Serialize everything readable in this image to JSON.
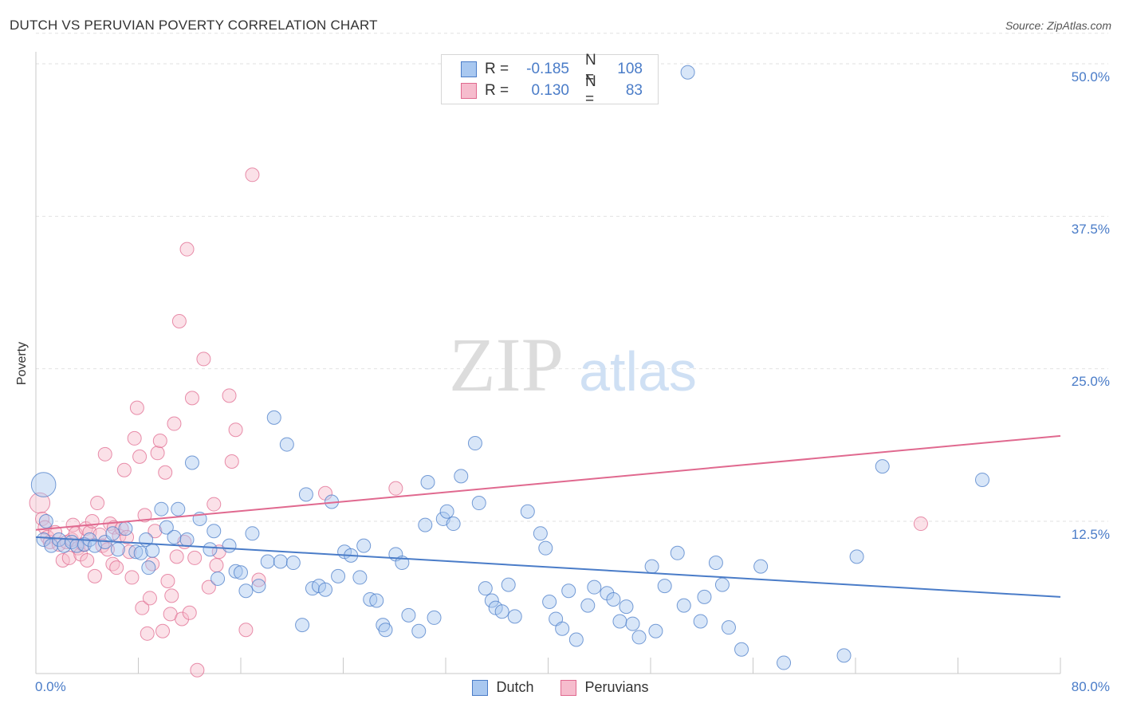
{
  "title": "DUTCH VS PERUVIAN POVERTY CORRELATION CHART",
  "source": "Source: ZipAtlas.com",
  "watermark": {
    "zip": "ZIP",
    "atlas": "atlas"
  },
  "legend": {
    "r_label": "R =",
    "n_label": "N =",
    "dutch": {
      "r": "-0.185",
      "n": "108"
    },
    "peruvians": {
      "r": "0.130",
      "n": "83"
    }
  },
  "colors": {
    "dutch": "#4a7cc8",
    "dutch_fill": "#a9c8f0",
    "peruvians": "#e0698f",
    "peruvians_fill": "#f6bccd",
    "axis_text": "#4a7cc8"
  },
  "chart_data": {
    "type": "scatter",
    "title": "DUTCH VS PERUVIAN POVERTY CORRELATION CHART",
    "xlabel": "",
    "ylabel": "Poverty",
    "xlim": [
      0,
      80
    ],
    "ylim": [
      0,
      52
    ],
    "x_tick_labels": [
      "0.0%",
      "80.0%"
    ],
    "y_ticks": [
      12.5,
      25.0,
      37.5,
      50.0
    ],
    "y_tick_labels": [
      "12.5%",
      "25.0%",
      "37.5%",
      "50.0%"
    ],
    "grid": true,
    "legend": [
      "Dutch",
      "Peruvians"
    ],
    "series": [
      {
        "name": "Dutch",
        "trend": {
          "x": [
            0,
            80
          ],
          "y": [
            11.2,
            6.3
          ]
        },
        "points": [
          [
            0.6,
            15.5,
            1.8
          ],
          [
            0.8,
            12.5,
            1
          ],
          [
            0.6,
            11,
            1
          ],
          [
            1.2,
            10.5,
            1
          ],
          [
            1.8,
            11,
            1
          ],
          [
            2.2,
            10.5,
            1
          ],
          [
            2.8,
            10.8,
            1
          ],
          [
            3.2,
            10.5,
            1
          ],
          [
            3.8,
            10.6,
            1
          ],
          [
            4.2,
            11.0,
            1
          ],
          [
            4.6,
            10.5,
            1
          ],
          [
            5.4,
            10.8,
            1
          ],
          [
            6,
            11.5,
            1
          ],
          [
            6.4,
            10.2,
            1
          ],
          [
            7,
            11.9,
            1
          ],
          [
            7.8,
            10.0,
            1
          ],
          [
            8.2,
            9.9,
            1
          ],
          [
            8.6,
            11.0,
            1
          ],
          [
            8.8,
            8.7,
            1
          ],
          [
            9.1,
            10.1,
            1
          ],
          [
            9.8,
            13.5,
            1
          ],
          [
            10.2,
            12.0,
            1
          ],
          [
            10.8,
            11.2,
            1
          ],
          [
            11.1,
            13.5,
            1
          ],
          [
            11.8,
            11.0,
            1
          ],
          [
            12.2,
            17.3,
            1
          ],
          [
            12.8,
            12.7,
            1
          ],
          [
            13.6,
            10.2,
            1
          ],
          [
            13.9,
            11.7,
            1
          ],
          [
            14.2,
            7.8,
            1
          ],
          [
            15.1,
            10.5,
            1
          ],
          [
            15.6,
            8.4,
            1
          ],
          [
            16.0,
            8.3,
            1
          ],
          [
            16.4,
            6.8,
            1
          ],
          [
            16.9,
            11.5,
            1
          ],
          [
            17.4,
            7.2,
            1
          ],
          [
            18.1,
            9.2,
            1
          ],
          [
            18.6,
            21.0,
            1
          ],
          [
            19.1,
            9.2,
            1
          ],
          [
            19.6,
            18.8,
            1
          ],
          [
            20.1,
            9.1,
            1
          ],
          [
            20.8,
            4.0,
            1
          ],
          [
            21.1,
            14.7,
            1
          ],
          [
            21.6,
            7.0,
            1
          ],
          [
            22.1,
            7.2,
            1
          ],
          [
            22.6,
            6.9,
            1
          ],
          [
            23.1,
            14.1,
            1
          ],
          [
            23.6,
            8.0,
            1
          ],
          [
            24.1,
            10.0,
            1
          ],
          [
            24.6,
            9.7,
            1
          ],
          [
            25.3,
            7.9,
            1
          ],
          [
            25.6,
            10.5,
            1
          ],
          [
            26.1,
            6.1,
            1
          ],
          [
            26.6,
            6.0,
            1
          ],
          [
            27.1,
            4.0,
            1
          ],
          [
            27.3,
            3.6,
            1
          ],
          [
            28.1,
            9.8,
            1
          ],
          [
            28.6,
            9.1,
            1
          ],
          [
            29.1,
            4.8,
            1
          ],
          [
            29.9,
            3.5,
            1
          ],
          [
            30.4,
            12.2,
            1
          ],
          [
            30.6,
            15.7,
            1
          ],
          [
            31.1,
            4.6,
            1
          ],
          [
            31.8,
            12.7,
            1
          ],
          [
            32.1,
            13.3,
            1
          ],
          [
            32.6,
            12.3,
            1
          ],
          [
            33.2,
            16.2,
            1
          ],
          [
            34.3,
            18.9,
            1
          ],
          [
            34.6,
            14.0,
            1
          ],
          [
            35.1,
            7.0,
            1
          ],
          [
            35.6,
            6.0,
            1
          ],
          [
            35.9,
            5.4,
            1
          ],
          [
            36.4,
            5.1,
            1
          ],
          [
            36.9,
            7.3,
            1
          ],
          [
            37.4,
            4.7,
            1
          ],
          [
            38.4,
            13.3,
            1
          ],
          [
            39.4,
            11.5,
            1
          ],
          [
            39.8,
            10.3,
            1
          ],
          [
            40.1,
            5.9,
            1
          ],
          [
            40.6,
            4.5,
            1
          ],
          [
            41.1,
            3.7,
            1
          ],
          [
            41.6,
            6.8,
            1
          ],
          [
            42.2,
            2.8,
            1
          ],
          [
            43.1,
            5.6,
            1
          ],
          [
            43.6,
            7.1,
            1
          ],
          [
            44.6,
            6.6,
            1
          ],
          [
            45.1,
            6.1,
            1
          ],
          [
            45.6,
            4.3,
            1
          ],
          [
            46.1,
            5.5,
            1
          ],
          [
            46.6,
            4.1,
            1
          ],
          [
            47.1,
            3.0,
            1
          ],
          [
            48.1,
            8.8,
            1
          ],
          [
            48.4,
            3.5,
            1
          ],
          [
            49.1,
            7.2,
            1
          ],
          [
            50.1,
            9.9,
            1
          ],
          [
            50.6,
            5.6,
            1
          ],
          [
            50.9,
            49.3,
            1
          ],
          [
            51.9,
            4.3,
            1
          ],
          [
            52.2,
            6.3,
            1
          ],
          [
            53.1,
            9.1,
            1
          ],
          [
            53.6,
            7.3,
            1
          ],
          [
            54.1,
            3.8,
            1
          ],
          [
            55.1,
            2.0,
            1
          ],
          [
            56.6,
            8.8,
            1
          ],
          [
            58.4,
            0.9,
            1
          ],
          [
            63.1,
            1.5,
            1
          ],
          [
            64.1,
            9.6,
            1
          ],
          [
            66.1,
            17.0,
            1
          ],
          [
            73.9,
            15.9,
            1
          ]
        ]
      },
      {
        "name": "Peruvians",
        "trend": {
          "x": [
            0,
            80
          ],
          "y": [
            11.8,
            19.5
          ]
        },
        "points": [
          [
            0.3,
            14.0,
            1.5
          ],
          [
            0.5,
            12.7,
            1
          ],
          [
            0.7,
            12.0,
            1
          ],
          [
            0.9,
            11.2,
            1
          ],
          [
            1.1,
            10.8,
            1
          ],
          [
            1.5,
            11.6,
            1
          ],
          [
            1.8,
            10.6,
            1
          ],
          [
            2.1,
            9.3,
            1
          ],
          [
            2.4,
            10.8,
            1
          ],
          [
            2.6,
            9.5,
            1
          ],
          [
            2.8,
            11.0,
            1
          ],
          [
            2.9,
            12.2,
            1
          ],
          [
            3.1,
            11.5,
            1
          ],
          [
            3.3,
            10.3,
            1
          ],
          [
            3.5,
            9.8,
            1
          ],
          [
            3.7,
            10.6,
            1
          ],
          [
            3.9,
            11.9,
            1
          ],
          [
            4.0,
            9.3,
            1
          ],
          [
            4.2,
            11.6,
            1
          ],
          [
            4.4,
            12.5,
            1
          ],
          [
            4.6,
            8.0,
            1
          ],
          [
            4.8,
            14.0,
            1
          ],
          [
            5.0,
            11.4,
            1
          ],
          [
            5.2,
            10.5,
            1
          ],
          [
            5.4,
            18.0,
            1
          ],
          [
            5.6,
            10.2,
            1
          ],
          [
            5.8,
            12.3,
            1
          ],
          [
            6.0,
            9.0,
            1
          ],
          [
            6.1,
            12.0,
            1
          ],
          [
            6.3,
            8.7,
            1
          ],
          [
            6.5,
            11.3,
            1
          ],
          [
            6.7,
            11.9,
            1
          ],
          [
            6.9,
            16.7,
            1
          ],
          [
            7.1,
            11.2,
            1
          ],
          [
            7.3,
            10.0,
            1
          ],
          [
            7.5,
            7.9,
            1
          ],
          [
            7.7,
            19.3,
            1
          ],
          [
            7.9,
            21.8,
            1
          ],
          [
            8.1,
            17.8,
            1
          ],
          [
            8.3,
            5.4,
            1
          ],
          [
            8.5,
            13.0,
            1
          ],
          [
            8.7,
            3.3,
            1
          ],
          [
            8.9,
            6.2,
            1
          ],
          [
            9.1,
            9.0,
            1
          ],
          [
            9.3,
            11.7,
            1
          ],
          [
            9.5,
            18.1,
            1
          ],
          [
            9.7,
            19.1,
            1
          ],
          [
            9.9,
            3.5,
            1
          ],
          [
            10.1,
            16.5,
            1
          ],
          [
            10.3,
            7.6,
            1
          ],
          [
            10.5,
            4.9,
            1
          ],
          [
            10.6,
            6.4,
            1
          ],
          [
            10.8,
            20.5,
            1
          ],
          [
            11.0,
            9.6,
            1
          ],
          [
            11.2,
            28.9,
            1
          ],
          [
            11.4,
            4.5,
            1
          ],
          [
            11.6,
            10.8,
            1
          ],
          [
            11.8,
            34.8,
            1
          ],
          [
            12.0,
            5.0,
            1
          ],
          [
            12.2,
            22.6,
            1
          ],
          [
            12.4,
            9.5,
            1
          ],
          [
            12.6,
            0.3,
            1
          ],
          [
            13.1,
            25.8,
            1
          ],
          [
            13.5,
            7.1,
            1
          ],
          [
            13.9,
            13.9,
            1
          ],
          [
            14.1,
            8.9,
            1
          ],
          [
            14.3,
            10.0,
            1
          ],
          [
            15.1,
            22.8,
            1
          ],
          [
            15.3,
            17.4,
            1
          ],
          [
            15.6,
            20.0,
            1
          ],
          [
            16.4,
            3.6,
            1
          ],
          [
            16.9,
            40.9,
            1
          ],
          [
            17.4,
            7.7,
            1
          ],
          [
            22.6,
            14.8,
            1
          ],
          [
            28.1,
            15.2,
            1
          ],
          [
            69.1,
            12.3,
            1
          ]
        ]
      }
    ]
  }
}
